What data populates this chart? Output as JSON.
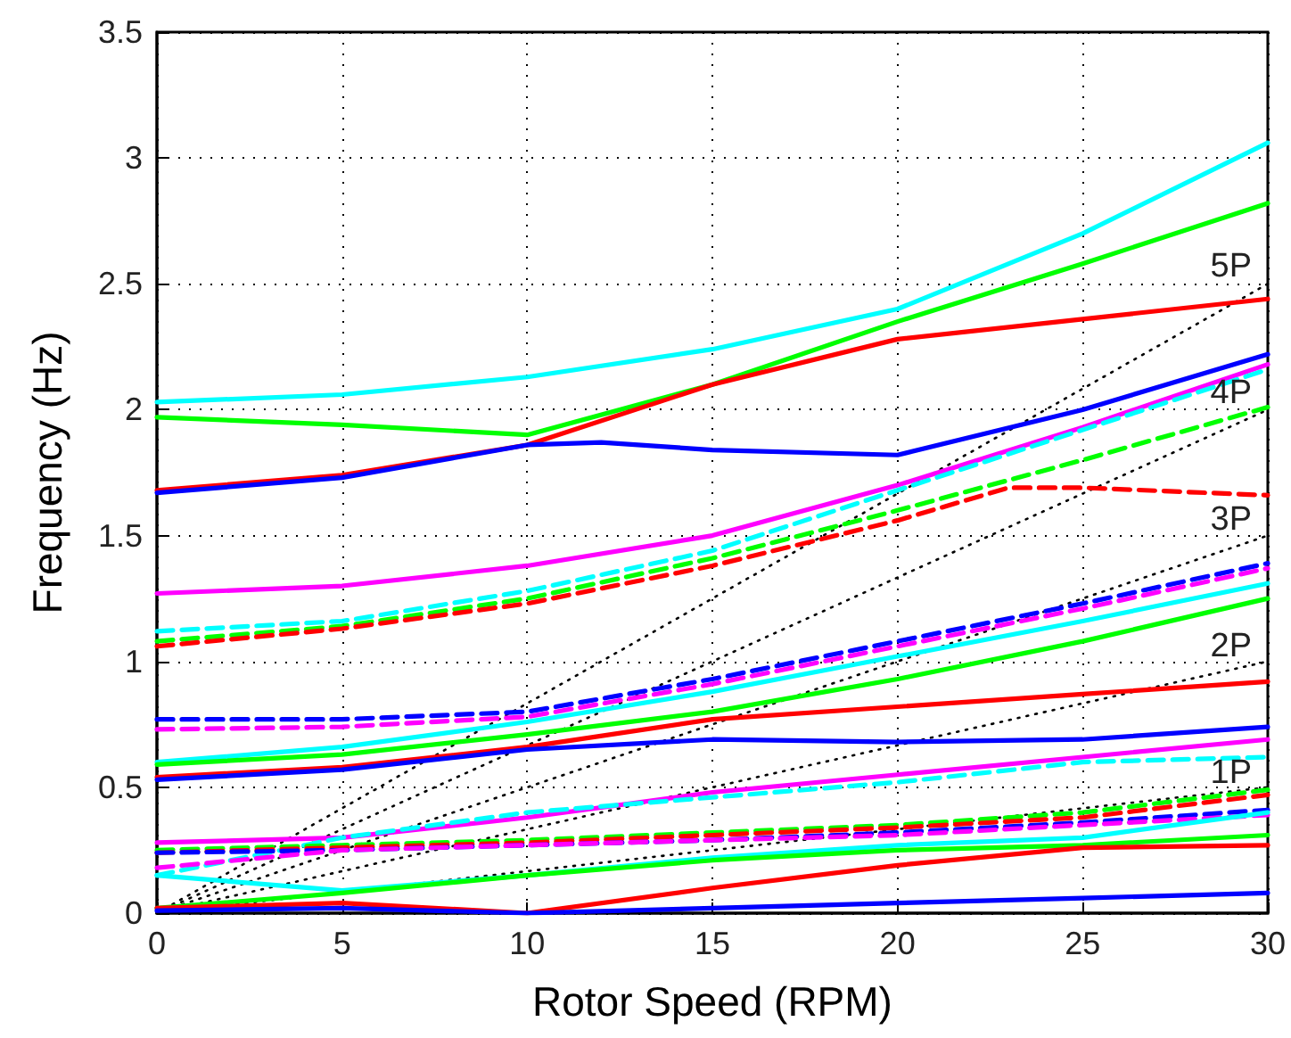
{
  "chart_data": {
    "type": "line",
    "xlabel": "Rotor Speed (RPM)",
    "ylabel": "Frequency (Hz)",
    "x": [
      0,
      5,
      10,
      15,
      20,
      25,
      30
    ],
    "xlim": [
      0,
      30
    ],
    "xticks": [
      0,
      5,
      10,
      15,
      20,
      25,
      30
    ],
    "ylim": [
      0,
      3.5
    ],
    "yticks": [
      0,
      0.5,
      1,
      1.5,
      2,
      2.5,
      3,
      3.5
    ],
    "grid": true,
    "marker": "none",
    "series": [
      {
        "color": "#00ffff",
        "line_style": "solid",
        "values": [
          2.03,
          2.06,
          2.13,
          2.24,
          2.4,
          2.7,
          3.06
        ]
      },
      {
        "color": "#00ff00",
        "line_style": "solid",
        "values": [
          1.97,
          1.94,
          1.9,
          2.1,
          2.35,
          2.58,
          2.82
        ]
      },
      {
        "color": "#ff0000",
        "line_style": "solid",
        "values": [
          1.68,
          1.74,
          1.86,
          2.1,
          2.28,
          2.36,
          2.44
        ]
      },
      {
        "color": "#0000ff",
        "line_style": "solid",
        "x": [
          0,
          5,
          10,
          12,
          15,
          20,
          25,
          30
        ],
        "values": [
          1.67,
          1.73,
          1.86,
          1.87,
          1.84,
          1.82,
          2.0,
          2.22
        ]
      },
      {
        "color": "#ff00ff",
        "line_style": "solid",
        "values": [
          1.27,
          1.3,
          1.38,
          1.5,
          1.7,
          1.93,
          2.18
        ]
      },
      {
        "color": "#00ffff",
        "line_style": "dashed",
        "values": [
          1.12,
          1.16,
          1.28,
          1.44,
          1.68,
          1.92,
          2.16
        ]
      },
      {
        "color": "#00ff00",
        "line_style": "dashed",
        "values": [
          1.08,
          1.14,
          1.25,
          1.41,
          1.6,
          1.8,
          2.01
        ]
      },
      {
        "color": "#ff0000",
        "line_style": "dashed",
        "x": [
          0,
          5,
          10,
          15,
          20,
          23,
          25,
          30
        ],
        "values": [
          1.06,
          1.13,
          1.23,
          1.38,
          1.56,
          1.69,
          1.69,
          1.66
        ]
      },
      {
        "color": "#0000ff",
        "line_style": "dashed",
        "values": [
          0.77,
          0.77,
          0.8,
          0.93,
          1.08,
          1.23,
          1.39
        ]
      },
      {
        "color": "#ff00ff",
        "line_style": "dashed",
        "values": [
          0.73,
          0.74,
          0.78,
          0.91,
          1.06,
          1.21,
          1.37
        ]
      },
      {
        "color": "#00ffff",
        "line_style": "solid",
        "values": [
          0.6,
          0.66,
          0.76,
          0.88,
          1.02,
          1.16,
          1.31
        ]
      },
      {
        "color": "#00ff00",
        "line_style": "solid",
        "values": [
          0.59,
          0.63,
          0.71,
          0.8,
          0.93,
          1.08,
          1.25
        ]
      },
      {
        "color": "#ff0000",
        "line_style": "solid",
        "values": [
          0.54,
          0.58,
          0.66,
          0.77,
          0.82,
          0.87,
          0.92
        ]
      },
      {
        "color": "#0000ff",
        "line_style": "solid",
        "values": [
          0.53,
          0.57,
          0.65,
          0.69,
          0.68,
          0.69,
          0.74
        ]
      },
      {
        "color": "#ff00ff",
        "line_style": "solid",
        "values": [
          0.28,
          0.3,
          0.38,
          0.48,
          0.55,
          0.62,
          0.69
        ]
      },
      {
        "color": "#00ffff",
        "line_style": "dashed",
        "values": [
          0.15,
          0.3,
          0.4,
          0.46,
          0.52,
          0.6,
          0.62
        ]
      },
      {
        "color": "#00ff00",
        "line_style": "dashed",
        "values": [
          0.25,
          0.27,
          0.29,
          0.32,
          0.35,
          0.4,
          0.49
        ]
      },
      {
        "color": "#ff0000",
        "line_style": "dashed",
        "values": [
          0.24,
          0.26,
          0.28,
          0.31,
          0.34,
          0.38,
          0.47
        ]
      },
      {
        "color": "#0000ff",
        "line_style": "dashed",
        "values": [
          0.24,
          0.25,
          0.27,
          0.29,
          0.32,
          0.36,
          0.41
        ]
      },
      {
        "color": "#ff00ff",
        "line_style": "dashed",
        "values": [
          0.18,
          0.25,
          0.27,
          0.29,
          0.31,
          0.35,
          0.39
        ]
      },
      {
        "color": "#00ffff",
        "line_style": "solid",
        "values": [
          0.15,
          0.09,
          0.15,
          0.22,
          0.27,
          0.3,
          0.4
        ]
      },
      {
        "color": "#00ff00",
        "line_style": "solid",
        "values": [
          0.02,
          0.08,
          0.15,
          0.21,
          0.25,
          0.27,
          0.31
        ]
      },
      {
        "color": "#ff0000",
        "line_style": "solid",
        "values": [
          0.02,
          0.04,
          0.0,
          0.1,
          0.19,
          0.26,
          0.27
        ]
      },
      {
        "color": "#0000ff",
        "line_style": "solid",
        "values": [
          0.01,
          0.02,
          0.0,
          0.02,
          0.04,
          0.06,
          0.08
        ]
      },
      {
        "color": "#000000",
        "line_style": "dotted",
        "x": [
          0,
          30
        ],
        "values": [
          0,
          0.5
        ]
      },
      {
        "color": "#000000",
        "line_style": "dotted",
        "x": [
          0,
          30
        ],
        "values": [
          0,
          1.0
        ]
      },
      {
        "color": "#000000",
        "line_style": "dotted",
        "x": [
          0,
          30
        ],
        "values": [
          0,
          1.5
        ]
      },
      {
        "color": "#000000",
        "line_style": "dotted",
        "x": [
          0,
          30
        ],
        "values": [
          0,
          2.0
        ]
      },
      {
        "color": "#000000",
        "line_style": "dotted",
        "x": [
          0,
          30
        ],
        "values": [
          0,
          2.5
        ]
      }
    ],
    "annotations": [
      "1P",
      "2P",
      "3P",
      "4P",
      "5P"
    ]
  }
}
